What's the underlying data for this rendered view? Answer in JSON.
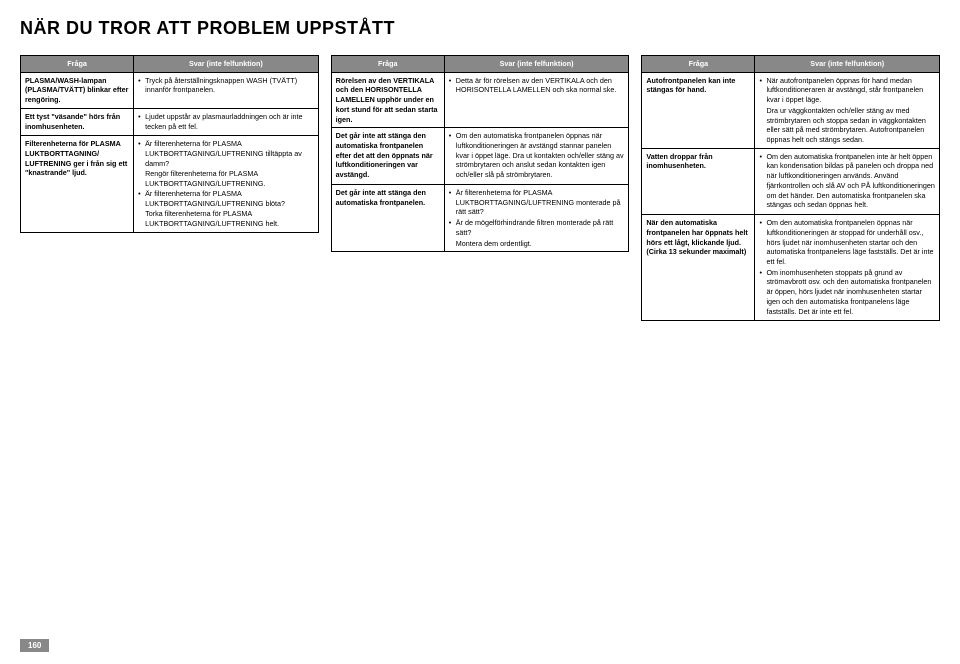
{
  "title": "NÄR DU TROR ATT PROBLEM UPPSTÅTT",
  "headers": {
    "q": "Fråga",
    "a": "Svar (inte felfunktion)"
  },
  "col1": [
    {
      "q": "PLASMA/WASH-lampan (PLASMA/TVÄTT) blinkar efter rengöring.",
      "a": [
        "Tryck på återställningsknappen WASH (TVÄTT) innanför frontpanelen."
      ]
    },
    {
      "q": "Ett tyst \"väsande\" hörs från inomhusenheten.",
      "a": [
        "Ljudet uppstår av plasmaurladdningen och är inte tecken på ett fel."
      ]
    },
    {
      "q": "Filterenheterna för PLASMA LUKTBORTTAGNING/ LUFTRENING ger i från sig ett \"knastrande\" ljud.",
      "a": [
        "Är filterenheterna för PLASMA LUKTBORTTAGNING/LUFTRENING tilltäppta av damm?",
        "__indent:Rengör filterenheterna för PLASMA LUKTBORTTAGNING/LUFTRENING.",
        "Är filterenheterna för PLASMA LUKTBORTTAGNING/LUFTRENING blöta?",
        "__indent:Torka filterenheterna för PLASMA LUKTBORTTAGNING/LUFTRENING helt."
      ]
    }
  ],
  "col2": [
    {
      "q": "Rörelsen av den VERTIKALA och den HORISONTELLA LAMELLEN upphör under en kort stund för att sedan starta igen.",
      "a": [
        "Detta är för rörelsen av den VERTIKALA och den HORISONTELLA LAMELLEN och ska normal ske."
      ]
    },
    {
      "q": "Det går inte att stänga den automatiska frontpanelen efter det att den öppnats när luftkonditioneringen var avstängd.",
      "a": [
        "Om den automatiska frontpanelen öppnas när luftkonditioneringen är avstängd stannar panelen kvar i öppet läge. Dra ut kontakten och/eller stäng av strömbrytaren och anslut sedan kontakten igen och/eller slå på strömbrytaren."
      ]
    },
    {
      "q": "Det går inte att stänga den automatiska frontpanelen.",
      "a": [
        "Är filterenheterna för PLASMA LUKTBORTTAGNING/LUFTRENING monterade på rätt sätt?",
        "Är de mögelförhindrande filtren monterade på rätt sätt?",
        "__indent:Montera dem ordentligt."
      ]
    }
  ],
  "col3": [
    {
      "q": "Autofrontpanelen kan inte stängas för hand.",
      "a": [
        "När autofrontpanelen öppnas för hand medan luftkonditioneraren är avstängd, står frontpanelen kvar i öppet läge.",
        "__indent:Dra ur väggkontakten och/eller stäng av med strömbrytaren och stoppa sedan in väggkontakten eller sätt på med strömbrytaren. Autofrontpanelen öppnas helt och stängs sedan."
      ]
    },
    {
      "q": "Vatten droppar från inomhusenheten.",
      "a": [
        "Om den automatiska frontpanelen inte är helt öppen kan kondensation bildas på panelen och droppa ned när luftkonditioneringen används. Använd fjärrkontrollen och slå AV och PÅ luftkonditioneringen om det händer. Den automatiska frontpanelen ska stängas och sedan öppnas helt."
      ]
    },
    {
      "q": "När den automatiska frontpanelen har öppnats helt hörs ett lågt, klickande ljud. (Cirka 13 sekunder maximalt)",
      "a": [
        "Om den automatiska frontpanelen öppnas när luftkonditioneringen är stoppad för underhåll osv., hörs ljudet när inomhusenheten startar och den automatiska frontpanelens läge fastställs. Det är inte ett fel.",
        "Om inomhusenheten stoppats på grund av strömavbrott osv. och den automatiska frontpanelen är öppen, hörs ljudet när inomhusenheten startar igen och den automatiska frontpanelens läge fastställs. Det är inte ett fel."
      ]
    }
  ],
  "pageNumber": "160"
}
